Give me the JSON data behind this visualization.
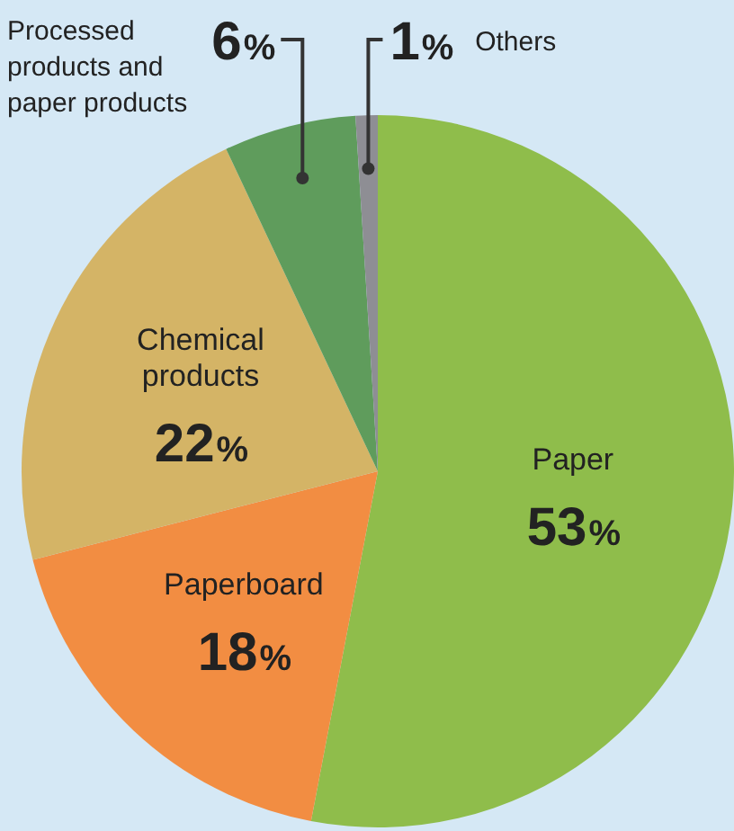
{
  "chart_data": {
    "type": "pie",
    "categories": [
      "Paper",
      "Paperboard",
      "Chemical products",
      "Processed products and paper products",
      "Others"
    ],
    "values": [
      53,
      18,
      22,
      6,
      1
    ],
    "colors": [
      "#8fbd4b",
      "#f28d42",
      "#d4b466",
      "#5f9c5c",
      "#8e8e94"
    ],
    "value_labels": [
      "53%",
      "18%",
      "22%",
      "6%",
      "1%"
    ],
    "legend": false
  }
}
